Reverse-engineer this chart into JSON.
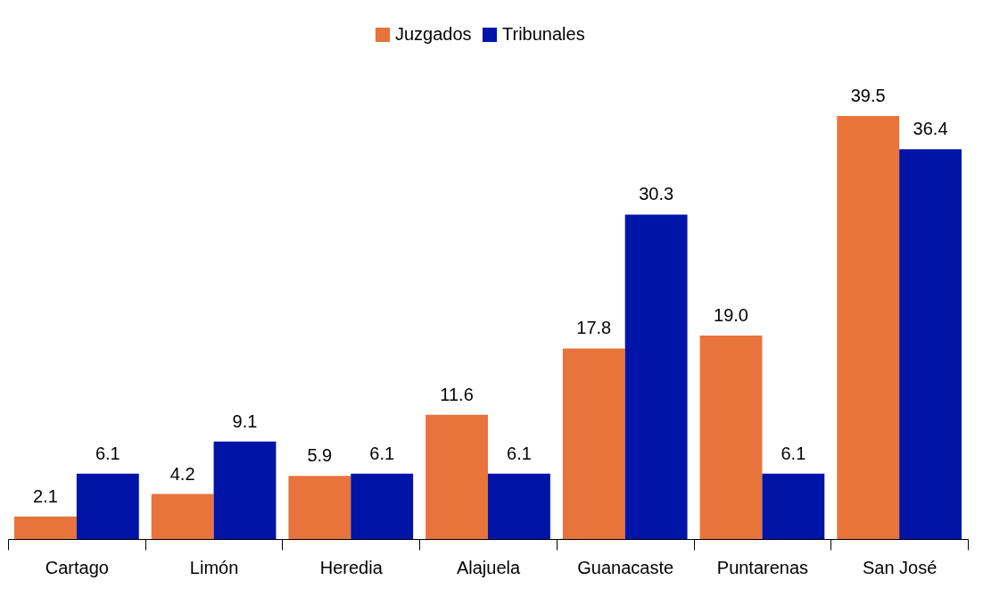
{
  "chart_data": {
    "type": "bar",
    "categories": [
      "Cartago",
      "Limón",
      "Heredia",
      "Alajuela",
      "Guanacaste",
      "Puntarenas",
      "San José"
    ],
    "series": [
      {
        "name": "Juzgados",
        "color": "#e8743b",
        "values": [
          2.1,
          4.2,
          5.9,
          11.6,
          17.8,
          19.0,
          39.5
        ],
        "value_labels": [
          "2.1",
          "4.2",
          "5.9",
          "11.6",
          "17.8",
          "19.0",
          "39.5"
        ]
      },
      {
        "name": "Tribunales",
        "color": "#0014a8",
        "values": [
          6.1,
          9.1,
          6.1,
          6.1,
          30.3,
          6.1,
          36.4
        ],
        "value_labels": [
          "6.1",
          "9.1",
          "6.1",
          "6.1",
          "30.3",
          "6.1",
          "36.4"
        ]
      }
    ],
    "legend": "top",
    "grid": false
  }
}
